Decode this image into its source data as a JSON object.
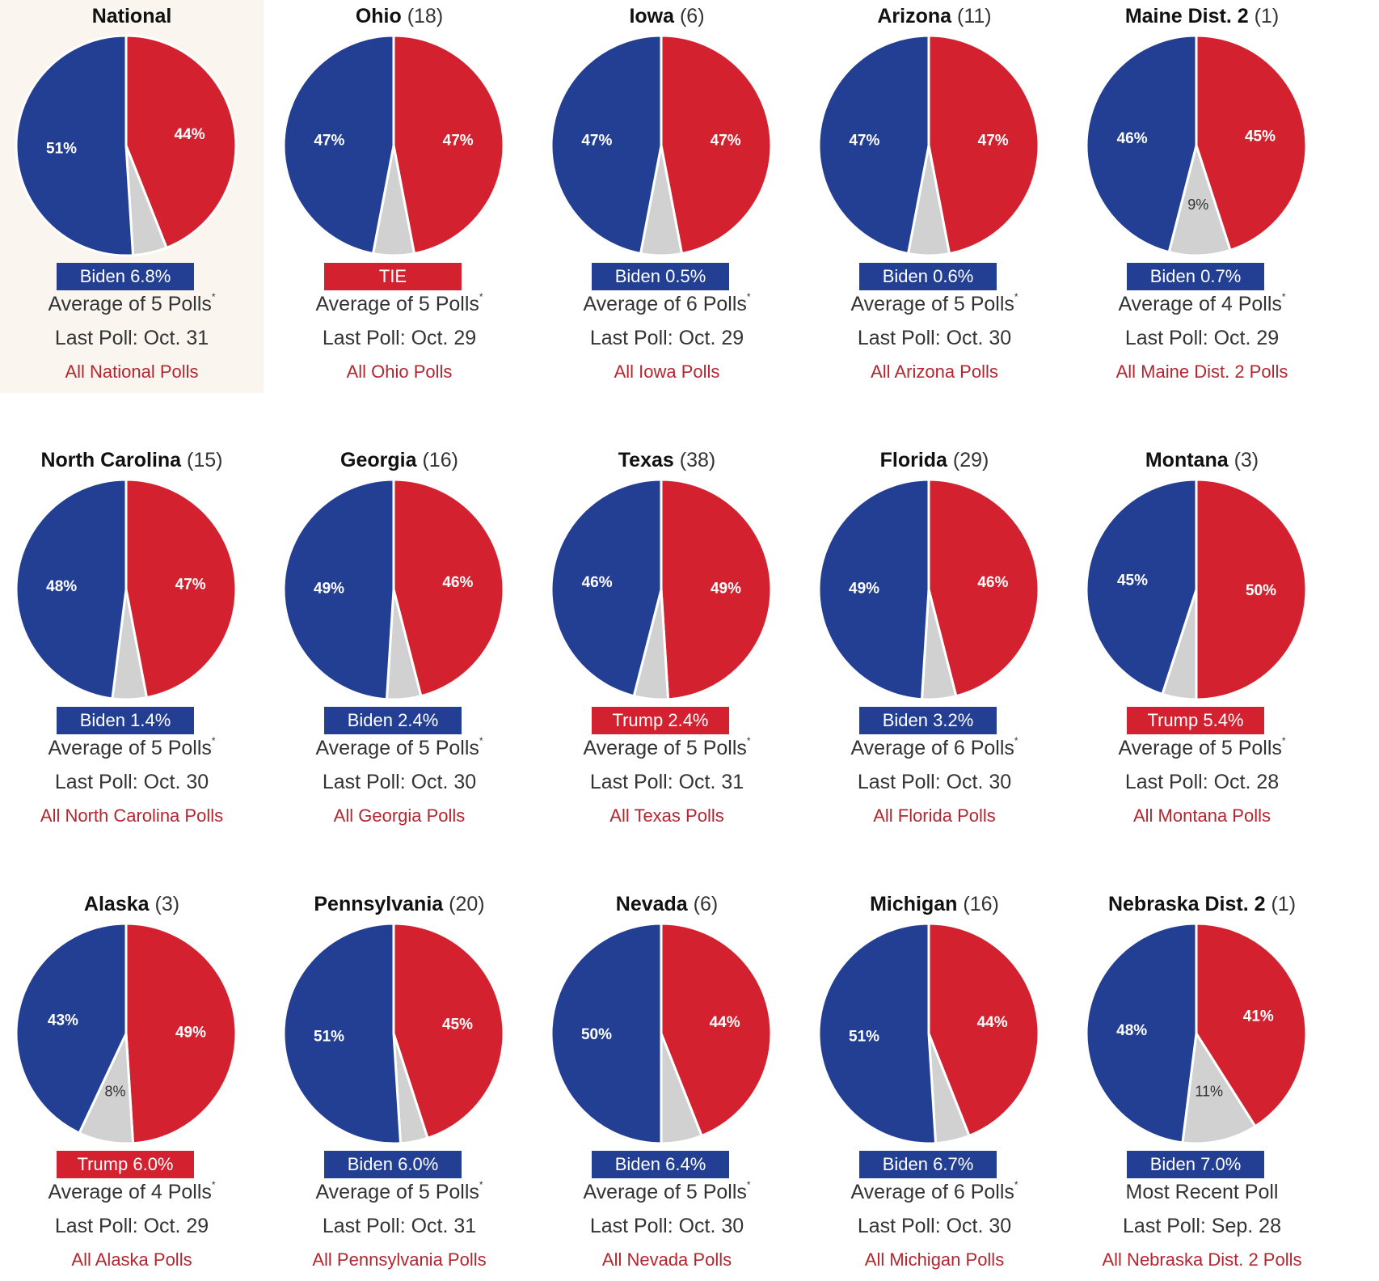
{
  "colors": {
    "biden": "#233f94",
    "trump": "#d4212f",
    "other": "#d1d1d1"
  },
  "chart_data": [
    {
      "type": "pie",
      "title": "National",
      "ev": "",
      "slices": [
        {
          "name": "Biden",
          "value": 51,
          "label": "51%"
        },
        {
          "name": "Trump",
          "value": 44,
          "label": "44%"
        },
        {
          "name": "Other",
          "value": 5,
          "label": ""
        }
      ],
      "badge": {
        "text": "Biden 6.8%",
        "party": "biden"
      },
      "avg": "Average of 5 Polls",
      "asterisk": "*",
      "last": "Last Poll: Oct. 31",
      "link": "All National Polls",
      "highlight": true
    },
    {
      "type": "pie",
      "title": "Ohio",
      "ev": "(18)",
      "slices": [
        {
          "name": "Biden",
          "value": 47,
          "label": "47%"
        },
        {
          "name": "Trump",
          "value": 47,
          "label": "47%"
        },
        {
          "name": "Other",
          "value": 6,
          "label": ""
        }
      ],
      "badge": {
        "text": "TIE",
        "party": "trump"
      },
      "avg": "Average of 5 Polls",
      "asterisk": "*",
      "last": "Last Poll: Oct. 29",
      "link": "All Ohio Polls"
    },
    {
      "type": "pie",
      "title": "Iowa",
      "ev": "(6)",
      "slices": [
        {
          "name": "Biden",
          "value": 47,
          "label": "47%"
        },
        {
          "name": "Trump",
          "value": 47,
          "label": "47%"
        },
        {
          "name": "Other",
          "value": 6,
          "label": ""
        }
      ],
      "badge": {
        "text": "Biden 0.5%",
        "party": "biden"
      },
      "avg": "Average of 6 Polls",
      "asterisk": "*",
      "last": "Last Poll: Oct. 29",
      "link": "All Iowa Polls"
    },
    {
      "type": "pie",
      "title": "Arizona",
      "ev": "(11)",
      "slices": [
        {
          "name": "Biden",
          "value": 47,
          "label": "47%"
        },
        {
          "name": "Trump",
          "value": 47,
          "label": "47%"
        },
        {
          "name": "Other",
          "value": 6,
          "label": ""
        }
      ],
      "badge": {
        "text": "Biden 0.6%",
        "party": "biden"
      },
      "avg": "Average of 5 Polls",
      "asterisk": "*",
      "last": "Last Poll: Oct. 30",
      "link": "All Arizona Polls"
    },
    {
      "type": "pie",
      "title": "Maine Dist. 2",
      "ev": "(1)",
      "slices": [
        {
          "name": "Biden",
          "value": 46,
          "label": "46%"
        },
        {
          "name": "Trump",
          "value": 45,
          "label": "45%"
        },
        {
          "name": "Other",
          "value": 9,
          "label": "9%"
        }
      ],
      "badge": {
        "text": "Biden 0.7%",
        "party": "biden"
      },
      "avg": "Average of 4 Polls",
      "asterisk": "*",
      "last": "Last Poll: Oct. 29",
      "link": "All Maine Dist. 2 Polls"
    },
    {
      "type": "pie",
      "title": "North Carolina",
      "ev": "(15)",
      "slices": [
        {
          "name": "Biden",
          "value": 48,
          "label": "48%"
        },
        {
          "name": "Trump",
          "value": 47,
          "label": "47%"
        },
        {
          "name": "Other",
          "value": 5,
          "label": ""
        }
      ],
      "badge": {
        "text": "Biden 1.4%",
        "party": "biden"
      },
      "avg": "Average of 5 Polls",
      "asterisk": "*",
      "last": "Last Poll: Oct. 30",
      "link": "All North Carolina Polls"
    },
    {
      "type": "pie",
      "title": "Georgia",
      "ev": "(16)",
      "slices": [
        {
          "name": "Biden",
          "value": 49,
          "label": "49%"
        },
        {
          "name": "Trump",
          "value": 46,
          "label": "46%"
        },
        {
          "name": "Other",
          "value": 5,
          "label": ""
        }
      ],
      "badge": {
        "text": "Biden 2.4%",
        "party": "biden"
      },
      "avg": "Average of 5 Polls",
      "asterisk": "*",
      "last": "Last Poll: Oct. 30",
      "link": "All Georgia Polls"
    },
    {
      "type": "pie",
      "title": "Texas",
      "ev": "(38)",
      "slices": [
        {
          "name": "Biden",
          "value": 46,
          "label": "46%"
        },
        {
          "name": "Trump",
          "value": 49,
          "label": "49%"
        },
        {
          "name": "Other",
          "value": 5,
          "label": ""
        }
      ],
      "badge": {
        "text": "Trump 2.4%",
        "party": "trump"
      },
      "avg": "Average of 5 Polls",
      "asterisk": "*",
      "last": "Last Poll: Oct. 31",
      "link": "All Texas Polls"
    },
    {
      "type": "pie",
      "title": "Florida",
      "ev": "(29)",
      "slices": [
        {
          "name": "Biden",
          "value": 49,
          "label": "49%"
        },
        {
          "name": "Trump",
          "value": 46,
          "label": "46%"
        },
        {
          "name": "Other",
          "value": 5,
          "label": ""
        }
      ],
      "badge": {
        "text": "Biden 3.2%",
        "party": "biden"
      },
      "avg": "Average of 6 Polls",
      "asterisk": "*",
      "last": "Last Poll: Oct. 30",
      "link": "All Florida Polls"
    },
    {
      "type": "pie",
      "title": "Montana",
      "ev": "(3)",
      "slices": [
        {
          "name": "Biden",
          "value": 45,
          "label": "45%"
        },
        {
          "name": "Trump",
          "value": 50,
          "label": "50%"
        },
        {
          "name": "Other",
          "value": 5,
          "label": ""
        }
      ],
      "badge": {
        "text": "Trump 5.4%",
        "party": "trump"
      },
      "avg": "Average of 5 Polls",
      "asterisk": "*",
      "last": "Last Poll: Oct. 28",
      "link": "All Montana Polls"
    },
    {
      "type": "pie",
      "title": "Alaska",
      "ev": "(3)",
      "slices": [
        {
          "name": "Biden",
          "value": 43,
          "label": "43%"
        },
        {
          "name": "Trump",
          "value": 49,
          "label": "49%"
        },
        {
          "name": "Other",
          "value": 8,
          "label": "8%"
        }
      ],
      "badge": {
        "text": "Trump 6.0%",
        "party": "trump"
      },
      "avg": "Average of 4 Polls",
      "asterisk": "*",
      "last": "Last Poll: Oct. 29",
      "link": "All Alaska Polls"
    },
    {
      "type": "pie",
      "title": "Pennsylvania",
      "ev": "(20)",
      "slices": [
        {
          "name": "Biden",
          "value": 51,
          "label": "51%"
        },
        {
          "name": "Trump",
          "value": 45,
          "label": "45%"
        },
        {
          "name": "Other",
          "value": 4,
          "label": ""
        }
      ],
      "badge": {
        "text": "Biden 6.0%",
        "party": "biden"
      },
      "avg": "Average of 5 Polls",
      "asterisk": "*",
      "last": "Last Poll: Oct. 31",
      "link": "All Pennsylvania Polls"
    },
    {
      "type": "pie",
      "title": "Nevada",
      "ev": "(6)",
      "slices": [
        {
          "name": "Biden",
          "value": 50,
          "label": "50%"
        },
        {
          "name": "Trump",
          "value": 44,
          "label": "44%"
        },
        {
          "name": "Other",
          "value": 6,
          "label": ""
        }
      ],
      "badge": {
        "text": "Biden 6.4%",
        "party": "biden"
      },
      "avg": "Average of 5 Polls",
      "asterisk": "*",
      "last": "Last Poll: Oct. 30",
      "link": "All Nevada Polls"
    },
    {
      "type": "pie",
      "title": "Michigan",
      "ev": "(16)",
      "slices": [
        {
          "name": "Biden",
          "value": 51,
          "label": "51%"
        },
        {
          "name": "Trump",
          "value": 44,
          "label": "44%"
        },
        {
          "name": "Other",
          "value": 5,
          "label": ""
        }
      ],
      "badge": {
        "text": "Biden 6.7%",
        "party": "biden"
      },
      "avg": "Average of 6 Polls",
      "asterisk": "*",
      "last": "Last Poll: Oct. 30",
      "link": "All Michigan Polls"
    },
    {
      "type": "pie",
      "title": "Nebraska Dist. 2",
      "ev": "(1)",
      "slices": [
        {
          "name": "Biden",
          "value": 48,
          "label": "48%"
        },
        {
          "name": "Trump",
          "value": 41,
          "label": "41%"
        },
        {
          "name": "Other",
          "value": 11,
          "label": "11%"
        }
      ],
      "badge": {
        "text": "Biden 7.0%",
        "party": "biden"
      },
      "avg": "Most Recent Poll",
      "asterisk": "",
      "last": "Last Poll: Sep. 28",
      "link": "All Nebraska Dist. 2 Polls"
    }
  ]
}
